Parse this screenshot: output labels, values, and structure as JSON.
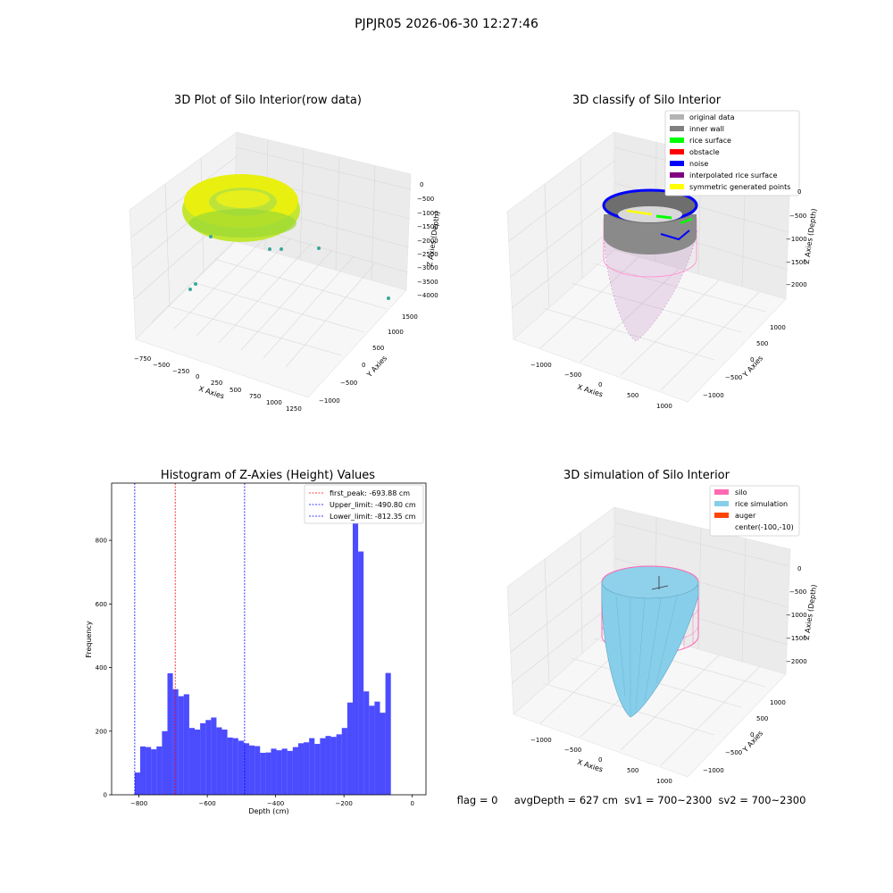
{
  "suptitle": "PJPJR05 2026-06-30 12:27:46",
  "status_line": "flag = 0     avgDepth = 627 cm  sv1 = 700~2300  sv2 = 700~2300",
  "panels": {
    "raw": {
      "title": "3D Plot of Silo Interior(row data)",
      "xlabel": "X Axies",
      "ylabel": "Y Axies",
      "zlabel": "Z Axies (Depth)",
      "x_ticks": [
        "−750",
        "−500",
        "−250",
        "0",
        "250",
        "500",
        "750",
        "1000",
        "1250"
      ],
      "y_ticks": [
        "−1000",
        "−500",
        "0",
        "500",
        "1000",
        "1500"
      ],
      "z_ticks": [
        "0",
        "−500",
        "−1000",
        "−1500",
        "−2000",
        "−2500",
        "−3000",
        "−3500",
        "−4000"
      ]
    },
    "classify": {
      "title": "3D classify of Silo Interior",
      "xlabel": "X Axies",
      "ylabel": "Y Axies",
      "zlabel": "Z Axies (Depth)",
      "x_ticks": [
        "−1000",
        "−500",
        "0",
        "500",
        "1000"
      ],
      "y_ticks": [
        "−1000",
        "−500",
        "0",
        "500",
        "1000"
      ],
      "z_ticks": [
        "0",
        "−500",
        "−1000",
        "−1500",
        "−2000"
      ],
      "legend": [
        {
          "label": "original data",
          "color": "#b3b3b3"
        },
        {
          "label": "inner wall",
          "color": "#808080"
        },
        {
          "label": "rice surface",
          "color": "#00ff00"
        },
        {
          "label": "obstacle",
          "color": "#ff0000"
        },
        {
          "label": "noise",
          "color": "#0000ff"
        },
        {
          "label": "interpolated rice surface",
          "color": "#800080"
        },
        {
          "label": "symmetric generated points",
          "color": "#ffff00"
        }
      ]
    },
    "simulation": {
      "title": "3D simulation of Silo Interior",
      "xlabel": "X Axies",
      "ylabel": "Y Axies",
      "zlabel": "Z Axies (Depth)",
      "x_ticks": [
        "−1000",
        "−500",
        "0",
        "500",
        "1000"
      ],
      "y_ticks": [
        "−1000",
        "−500",
        "0",
        "500",
        "1000"
      ],
      "z_ticks": [
        "0",
        "−500",
        "−1000",
        "−1500",
        "−2000"
      ],
      "legend": [
        {
          "label": "silo",
          "color": "#ff69b4"
        },
        {
          "label": "rice simulation",
          "color": "#87ceeb"
        },
        {
          "label": "auger",
          "color": "#ff4500"
        },
        {
          "label": "center(-100,-10)",
          "color": ""
        }
      ]
    }
  },
  "chart_data": {
    "type": "bar",
    "title": "Histogram of Z-Axies (Height) Values",
    "xlabel": "Depth (cm)",
    "ylabel": "Frequency",
    "bar_color": "#0000ff",
    "xlim": [
      -880,
      40
    ],
    "ylim": [
      0,
      980
    ],
    "x_ticks": [
      -800,
      -600,
      -400,
      -200,
      0
    ],
    "x_tick_labels": [
      "−800",
      "−600",
      "−400",
      "−200",
      "0"
    ],
    "y_ticks": [
      0,
      200,
      400,
      600,
      800
    ],
    "bin_start": -812.35,
    "bin_width": 15.95,
    "values": [
      70,
      152,
      150,
      143,
      152,
      200,
      382,
      332,
      310,
      316,
      210,
      205,
      225,
      235,
      243,
      212,
      205,
      180,
      178,
      170,
      162,
      155,
      153,
      132,
      133,
      145,
      140,
      145,
      138,
      150,
      162,
      165,
      178,
      160,
      178,
      185,
      182,
      190,
      210,
      290,
      950,
      765,
      325,
      280,
      293,
      258,
      383
    ],
    "lines": [
      {
        "label": "first_peak: -693.88 cm",
        "x": -693.88,
        "color": "#ff0000"
      },
      {
        "label": "Upper_limit: -490.80 cm",
        "x": -490.8,
        "color": "#0000ff"
      },
      {
        "label": "Lower_limit: -812.35 cm",
        "x": -812.35,
        "color": "#0000ff"
      }
    ]
  }
}
